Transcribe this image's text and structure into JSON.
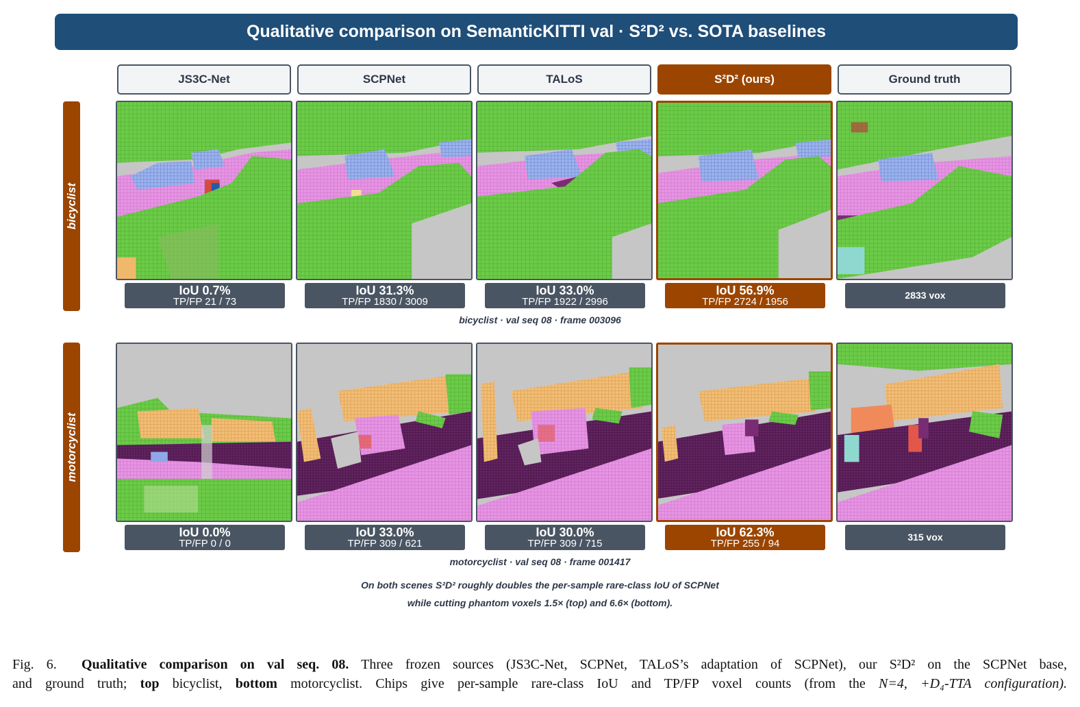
{
  "banner": {
    "title": "Qualitative comparison on SemanticKITTI val · S²D² vs. SOTA baselines"
  },
  "columns": [
    {
      "label": "JS3C-Net"
    },
    {
      "label": "SCPNet"
    },
    {
      "label": "TALoS"
    },
    {
      "label": "S²D² (ours)"
    },
    {
      "label": "Ground truth"
    }
  ],
  "rows": [
    {
      "label": "bicyclist",
      "caption": "bicyclist · val seq 08 · frame 003096",
      "chips": [
        {
          "iou": "IoU 0.7%",
          "tpfp": "TP/FP 21 / 73"
        },
        {
          "iou": "IoU 31.3%",
          "tpfp": "TP/FP 1830 / 3009"
        },
        {
          "iou": "IoU 33.0%",
          "tpfp": "TP/FP 1922 / 2996"
        },
        {
          "iou": "IoU 56.9%",
          "tpfp": "TP/FP 2724 / 1956"
        },
        {
          "gt": "2833 vox"
        }
      ]
    },
    {
      "label": "motorcyclist",
      "caption": "motorcyclist · val seq 08 · frame 001417",
      "chips": [
        {
          "iou": "IoU 0.0%",
          "tpfp": "TP/FP 0 / 0"
        },
        {
          "iou": "IoU 33.0%",
          "tpfp": "TP/FP 309 / 621"
        },
        {
          "iou": "IoU 30.0%",
          "tpfp": "TP/FP 309 / 715"
        },
        {
          "iou": "IoU 62.3%",
          "tpfp": "TP/FP 255 / 94"
        },
        {
          "gt": "315 vox"
        }
      ]
    }
  ],
  "summary": {
    "line1": "On both scenes S²D² roughly doubles the per-sample rare-class IoU of SCPNet",
    "line2": "while cutting phantom voxels 1.5× (top) and 6.6× (bottom)."
  },
  "figure_caption": {
    "label": "Fig. 6.",
    "bold_title": "Qualitative comparison on val seq. 08.",
    "text_a": "Three frozen sources (JS3C-Net, SCPNet, TALoS’s adaptation of SCPNet), our",
    "method": "S²D²",
    "text_b": "on the SCPNet base,",
    "line2_a": "and ground truth;",
    "top_word": "top",
    "line2_b": "bicyclist,",
    "bottom_word": "bottom",
    "line2_c": "motorcyclist. Chips give per-sample rare-class IoU and TP/FP voxel counts (from the",
    "config": "N=4, +D₄-TTA configuration)."
  },
  "colors": {
    "banner": "#1f4e79",
    "accent": "#9b4500",
    "chip": "#4a5563",
    "vegetation": "#5cb83c",
    "car": "#8fa8e8",
    "road": "#e38be0",
    "sidewalk": "#5c1f5a",
    "building": "#f0b86a"
  }
}
